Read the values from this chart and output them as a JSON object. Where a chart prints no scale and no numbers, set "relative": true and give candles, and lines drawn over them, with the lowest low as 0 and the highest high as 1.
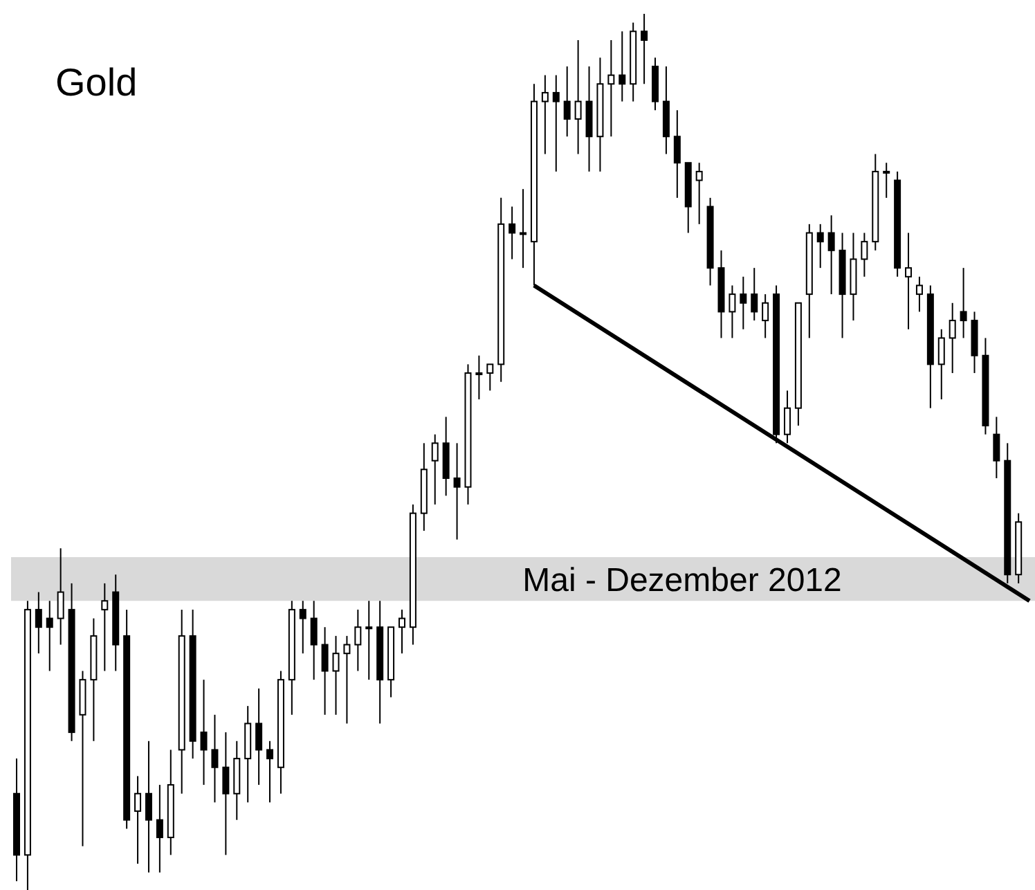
{
  "chart_data": {
    "type": "candlestick",
    "title": "Gold",
    "relative": true,
    "categories": [
      null,
      null,
      null,
      null,
      null,
      null,
      null,
      null,
      null,
      null,
      null,
      null,
      null,
      null,
      null,
      null,
      null,
      null,
      null,
      null,
      null,
      null,
      null,
      null,
      null,
      null,
      null,
      null,
      null,
      null,
      null,
      null,
      null,
      null,
      null,
      null,
      null,
      null,
      null,
      null,
      null,
      null,
      null,
      null,
      null,
      null,
      null,
      null,
      null,
      null,
      null,
      null,
      null,
      null,
      null,
      null,
      null,
      null,
      null,
      null,
      null,
      null,
      null,
      null,
      null,
      null,
      null,
      null,
      null,
      null,
      null,
      null,
      null,
      null,
      null,
      null,
      null,
      null,
      null,
      null,
      null,
      null,
      null,
      null,
      null,
      null,
      null,
      null,
      null,
      null,
      null,
      null,
      null
    ],
    "ohlc": [
      [
        0.11,
        0.15,
        0.01,
        0.04
      ],
      [
        0.04,
        0.33,
        0,
        0.32
      ],
      [
        0.32,
        0.34,
        0.27,
        0.3
      ],
      [
        0.31,
        0.33,
        0.25,
        0.3
      ],
      [
        0.31,
        0.39,
        0.28,
        0.34
      ],
      [
        0.32,
        0.35,
        0.17,
        0.18
      ],
      [
        0.2,
        0.25,
        0.05,
        0.24
      ],
      [
        0.24,
        0.31,
        0.17,
        0.29
      ],
      [
        0.32,
        0.35,
        0.25,
        0.33
      ],
      [
        0.34,
        0.36,
        0.25,
        0.28
      ],
      [
        0.29,
        0.32,
        0.07,
        0.08
      ],
      [
        0.09,
        0.13,
        0.03,
        0.11
      ],
      [
        0.11,
        0.17,
        0.02,
        0.08
      ],
      [
        0.08,
        0.12,
        0.02,
        0.06
      ],
      [
        0.06,
        0.16,
        0.04,
        0.12
      ],
      [
        0.16,
        0.32,
        0.11,
        0.29
      ],
      [
        0.29,
        0.32,
        0.15,
        0.17
      ],
      [
        0.18,
        0.24,
        0.12,
        0.16
      ],
      [
        0.16,
        0.2,
        0.1,
        0.14
      ],
      [
        0.14,
        0.18,
        0.04,
        0.11
      ],
      [
        0.11,
        0.17,
        0.08,
        0.15
      ],
      [
        0.15,
        0.21,
        0.1,
        0.19
      ],
      [
        0.19,
        0.23,
        0.12,
        0.16
      ],
      [
        0.16,
        0.17,
        0.1,
        0.15
      ],
      [
        0.14,
        0.25,
        0.11,
        0.24
      ],
      [
        0.24,
        0.33,
        0.2,
        0.32
      ],
      [
        0.32,
        0.33,
        0.27,
        0.31
      ],
      [
        0.31,
        0.33,
        0.24,
        0.28
      ],
      [
        0.28,
        0.3,
        0.2,
        0.25
      ],
      [
        0.25,
        0.29,
        0.2,
        0.27
      ],
      [
        0.27,
        0.29,
        0.19,
        0.28
      ],
      [
        0.28,
        0.32,
        0.25,
        0.3
      ],
      [
        0.3,
        0.33,
        0.24,
        0.3
      ],
      [
        0.3,
        0.33,
        0.19,
        0.24
      ],
      [
        0.24,
        0.3,
        0.22,
        0.3
      ],
      [
        0.3,
        0.32,
        0.27,
        0.31
      ],
      [
        0.3,
        0.44,
        0.28,
        0.43
      ],
      [
        0.43,
        0.51,
        0.41,
        0.48
      ],
      [
        0.49,
        0.52,
        0.44,
        0.51
      ],
      [
        0.51,
        0.54,
        0.45,
        0.47
      ],
      [
        0.47,
        0.51,
        0.4,
        0.46
      ],
      [
        0.46,
        0.6,
        0.44,
        0.59
      ],
      [
        0.59,
        0.61,
        0.56,
        0.59
      ],
      [
        0.59,
        0.6,
        0.57,
        0.6
      ],
      [
        0.6,
        0.79,
        0.58,
        0.76
      ],
      [
        0.76,
        0.78,
        0.72,
        0.75
      ],
      [
        0.75,
        0.8,
        0.71,
        0.75
      ],
      [
        0.74,
        0.92,
        0.69,
        0.9
      ],
      [
        0.9,
        0.93,
        0.84,
        0.91
      ],
      [
        0.91,
        0.93,
        0.82,
        0.9
      ],
      [
        0.9,
        0.94,
        0.86,
        0.88
      ],
      [
        0.88,
        0.97,
        0.84,
        0.9
      ],
      [
        0.9,
        0.94,
        0.82,
        0.86
      ],
      [
        0.86,
        0.95,
        0.82,
        0.92
      ],
      [
        0.92,
        0.97,
        0.86,
        0.93
      ],
      [
        0.93,
        0.98,
        0.9,
        0.92
      ],
      [
        0.92,
        0.99,
        0.9,
        0.98
      ],
      [
        0.98,
        1,
        0.92,
        0.97
      ],
      [
        0.94,
        0.95,
        0.89,
        0.9
      ],
      [
        0.9,
        0.94,
        0.84,
        0.86
      ],
      [
        0.86,
        0.89,
        0.79,
        0.83
      ],
      [
        0.83,
        0.83,
        0.75,
        0.78
      ],
      [
        0.81,
        0.83,
        0.76,
        0.82
      ],
      [
        0.78,
        0.79,
        0.69,
        0.71
      ],
      [
        0.71,
        0.73,
        0.63,
        0.66
      ],
      [
        0.66,
        0.69,
        0.63,
        0.68
      ],
      [
        0.68,
        0.7,
        0.64,
        0.67
      ],
      [
        0.68,
        0.71,
        0.65,
        0.66
      ],
      [
        0.65,
        0.68,
        0.63,
        0.67
      ],
      [
        0.68,
        0.69,
        0.51,
        0.52
      ],
      [
        0.52,
        0.57,
        0.51,
        0.55
      ],
      [
        0.55,
        0.67,
        0.53,
        0.67
      ],
      [
        0.68,
        0.76,
        0.63,
        0.75
      ],
      [
        0.75,
        0.76,
        0.71,
        0.74
      ],
      [
        0.75,
        0.77,
        0.68,
        0.73
      ],
      [
        0.73,
        0.75,
        0.63,
        0.68
      ],
      [
        0.68,
        0.75,
        0.65,
        0.72
      ],
      [
        0.72,
        0.75,
        0.7,
        0.74
      ],
      [
        0.74,
        0.84,
        0.73,
        0.82
      ],
      [
        0.82,
        0.83,
        0.79,
        0.82
      ],
      [
        0.81,
        0.82,
        0.7,
        0.71
      ],
      [
        0.7,
        0.75,
        0.64,
        0.71
      ],
      [
        0.68,
        0.7,
        0.66,
        0.69
      ],
      [
        0.68,
        0.69,
        0.55,
        0.6
      ],
      [
        0.6,
        0.64,
        0.56,
        0.63
      ],
      [
        0.63,
        0.67,
        0.59,
        0.65
      ],
      [
        0.66,
        0.71,
        0.63,
        0.65
      ],
      [
        0.65,
        0.66,
        0.59,
        0.61
      ],
      [
        0.61,
        0.63,
        0.52,
        0.53
      ],
      [
        0.52,
        0.54,
        0.47,
        0.49
      ],
      [
        0.49,
        0.51,
        0.35,
        0.36
      ],
      [
        0.36,
        0.43,
        0.35,
        0.42
      ],
      null
    ],
    "series": [
      {
        "type": "line",
        "color": "#000000",
        "values": [
          null,
          null,
          null,
          null,
          null,
          null,
          null,
          null,
          null,
          null,
          null,
          null,
          null,
          null,
          null,
          null,
          null,
          null,
          null,
          null,
          null,
          null,
          null,
          null,
          null,
          null,
          null,
          null,
          null,
          null,
          null,
          null,
          null,
          null,
          null,
          null,
          null,
          null,
          null,
          null,
          null,
          null,
          null,
          null,
          null,
          null,
          null,
          0.69,
          null,
          null,
          null,
          null,
          null,
          null,
          null,
          null,
          null,
          null,
          null,
          null,
          null,
          null,
          null,
          null,
          null,
          null,
          null,
          null,
          null,
          null,
          null,
          null,
          null,
          null,
          null,
          null,
          null,
          null,
          null,
          null,
          null,
          null,
          null,
          null,
          null,
          null,
          null,
          null,
          null,
          null,
          null,
          null,
          0.33
        ]
      }
    ],
    "bands": [
      {
        "axis": "y",
        "from": 0.33,
        "to": 0.38,
        "label": "Mai - Dezember 2012",
        "color": "#d9d9d9"
      }
    ]
  }
}
